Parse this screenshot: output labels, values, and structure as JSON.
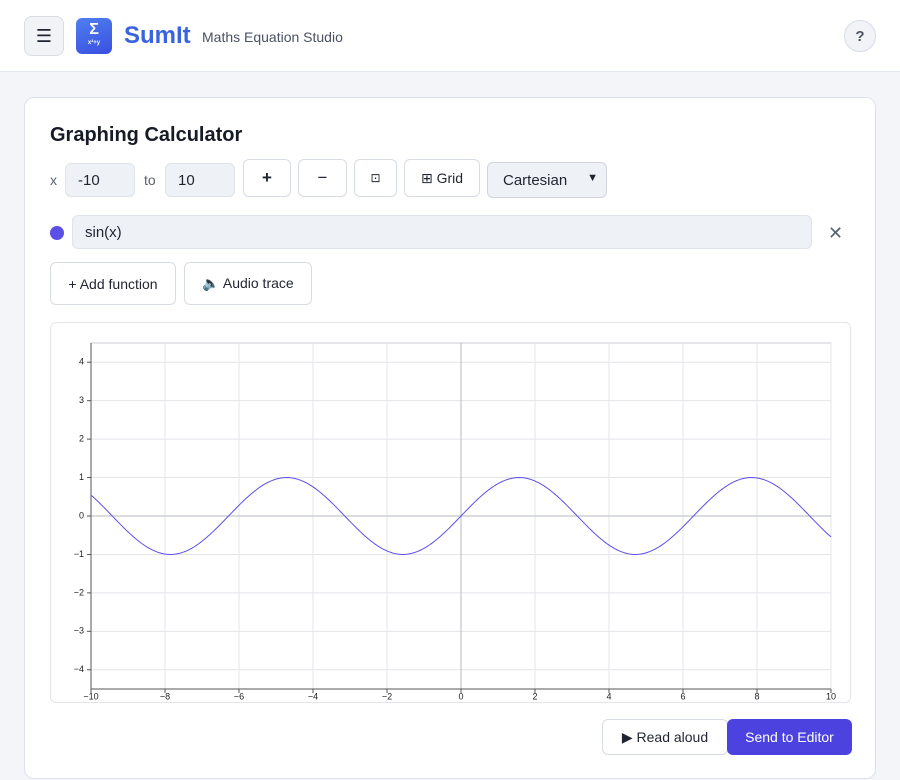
{
  "header": {
    "menu_icon": "☰",
    "logo_symbol": "Σ",
    "logo_sub": "x²+y",
    "app_name": "SumIt",
    "tagline": "Maths Equation Studio",
    "help_label": "?"
  },
  "calculator": {
    "title": "Graphing Calculator",
    "x_label": "x",
    "x_min": "-10",
    "to_label": "to",
    "x_max": "10",
    "zoom_in_label": "+",
    "zoom_out_label": "−",
    "fit_label": "⊡",
    "grid_label": "⊞ Grid",
    "mode_selected": "Cartesian",
    "function_expression": "sin(x)",
    "remove_label": "✕",
    "add_function_label": "+ Add function",
    "audio_trace_label": "🔈 Audio trace",
    "read_aloud_label": "▶ Read aloud",
    "send_label": "Send to Editor"
  },
  "colors": {
    "accent": "#4b42e0",
    "function_color": "#5b4fe6",
    "brand": "#3a63e0"
  },
  "chart_data": {
    "type": "line",
    "title": "",
    "xlabel": "",
    "ylabel": "",
    "xlim": [
      -10,
      10
    ],
    "ylim": [
      -4.5,
      4.5
    ],
    "x_ticks": [
      -10,
      -8,
      -6,
      -4,
      -2,
      0,
      2,
      4,
      6,
      8,
      10
    ],
    "y_ticks": [
      -4,
      -3,
      -2,
      -1,
      0,
      1,
      2,
      3,
      4
    ],
    "x_tick_labels": [
      "−10",
      "−8",
      "−6",
      "−4",
      "−2",
      "0",
      "2",
      "4",
      "6",
      "8",
      "10"
    ],
    "y_tick_labels": [
      "−4",
      "−3",
      "−2",
      "−1",
      "0",
      "1",
      "2",
      "3",
      "4"
    ],
    "grid": true,
    "series": [
      {
        "name": "sin(x)",
        "x": [
          -10,
          -9.5,
          -9,
          -8.5,
          -8,
          -7.5,
          -7,
          -6.5,
          -6,
          -5.5,
          -5,
          -4.5,
          -4,
          -3.5,
          -3,
          -2.5,
          -2,
          -1.5,
          -1,
          -0.5,
          0,
          0.5,
          1,
          1.5,
          2,
          2.5,
          3,
          3.5,
          4,
          4.5,
          5,
          5.5,
          6,
          6.5,
          7,
          7.5,
          8,
          8.5,
          9,
          9.5,
          10
        ],
        "y": [
          0.544,
          0.075,
          -0.412,
          -0.798,
          -0.989,
          -0.938,
          -0.657,
          -0.215,
          0.279,
          0.706,
          0.959,
          0.978,
          0.757,
          0.351,
          -0.141,
          -0.598,
          -0.909,
          -0.997,
          -0.841,
          -0.479,
          0,
          0.479,
          0.841,
          0.997,
          0.909,
          0.598,
          0.141,
          -0.351,
          -0.757,
          -0.978,
          -0.959,
          -0.706,
          -0.279,
          0.215,
          0.657,
          0.938,
          0.989,
          0.798,
          0.412,
          -0.075,
          -0.544
        ]
      }
    ]
  }
}
